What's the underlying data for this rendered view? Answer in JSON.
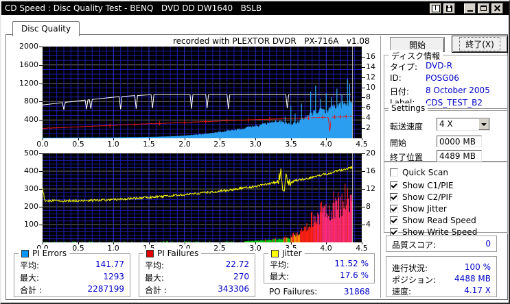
{
  "window": {
    "title": "CD Speed : Disc Quality Test - BENQ   DVD DD DW1640   BSLB"
  },
  "titlebar_icons": [
    "book-icon",
    "floppy-icon",
    "minimize-icon",
    "maximize-icon",
    "close-icon"
  ],
  "tab": {
    "label": "Disc Quality"
  },
  "recorded_with": "recorded with PLEXTOR DVDR   PX-716A   v1.08",
  "buttons": {
    "start": "開始",
    "exit": "終了(X)"
  },
  "disc_info": {
    "title": "ディスク情報",
    "rows": [
      {
        "label": "タイプ:",
        "value": "DVD-R"
      },
      {
        "label": "ID:",
        "value": "POSG06"
      },
      {
        "label": "日付:",
        "value": "8 October 2005"
      },
      {
        "label": "Label:",
        "value": "CDS_TEST_B2"
      }
    ]
  },
  "settings": {
    "title": "Settings",
    "speed_label": "転送速度",
    "speed_value": "4 X",
    "start_label": "開始",
    "start_value": "0000 MB",
    "end_label": "終了位置",
    "end_value": "4489 MB"
  },
  "checkboxes": [
    {
      "label": "Quick Scan",
      "checked": false
    },
    {
      "label": "Show C1/PIE",
      "checked": true
    },
    {
      "label": "Show C2/PIF",
      "checked": true
    },
    {
      "label": "Show Jitter",
      "checked": true
    },
    {
      "label": "Show Read Speed",
      "checked": true
    },
    {
      "label": "Show Write Speed",
      "checked": true
    }
  ],
  "quality": {
    "label": "品質スコア:",
    "value": "0"
  },
  "progress": {
    "rows": [
      {
        "label": "進行状況:",
        "value": "100 %"
      },
      {
        "label": "ポジション:",
        "value": "4488 MB"
      },
      {
        "label": "速度:",
        "value": "4.17 X"
      }
    ]
  },
  "stats": {
    "pi_errors": {
      "title": "PI Errors",
      "color": "#0095FF",
      "rows": [
        {
          "label": "平均:",
          "value": "141.77"
        },
        {
          "label": "最大:",
          "value": "1293"
        },
        {
          "label": "合計 :",
          "value": "2287199"
        }
      ]
    },
    "pi_failures": {
      "title": "PI Failures",
      "color": "#E00000",
      "rows": [
        {
          "label": "平均:",
          "value": "22.72"
        },
        {
          "label": "最大:",
          "value": "270"
        },
        {
          "label": "合計 :",
          "value": "343306"
        }
      ]
    },
    "jitter": {
      "title": "Jitter",
      "color": "#FFFF00",
      "rows": [
        {
          "label": "平均:",
          "value": "11.52 %"
        },
        {
          "label": "最大:",
          "value": "17.6 %"
        }
      ]
    },
    "po_failures": {
      "label": "PO Failures:",
      "value": "31868"
    }
  },
  "chart_data": [
    {
      "name": "PI Errors / Speed",
      "type": "line",
      "x_range": [
        0,
        4.5
      ],
      "x_tick_labels": [
        "0.0",
        "0.5",
        "1.0",
        "1.5",
        "2.0",
        "2.5",
        "3.0",
        "3.5",
        "4.0",
        "4.5"
      ],
      "left_axis": {
        "range": [
          0,
          2000
        ],
        "ticks": [
          [
            400,
            "400"
          ],
          [
            800,
            "800"
          ],
          [
            1200,
            "1200"
          ],
          [
            1600,
            "1600"
          ],
          [
            2000,
            "2000"
          ]
        ]
      },
      "right_axis": {
        "range": [
          0,
          18
        ],
        "ticks": [
          [
            2,
            "2"
          ],
          [
            4,
            "4"
          ],
          [
            6,
            "6"
          ],
          [
            8,
            "8"
          ],
          [
            10,
            "10"
          ],
          [
            12,
            "12"
          ],
          [
            14,
            "14"
          ],
          [
            16,
            "16"
          ]
        ]
      },
      "grid": {
        "h_minor": 100,
        "h_major": 400,
        "v_minor": 0.1,
        "v_major": 0.5
      },
      "end_line_x": 4.37,
      "series": [
        {
          "name": "PI Errors",
          "kind": "area",
          "axis": "left",
          "color": "#2B9EF0",
          "noise_rel": 0.14,
          "points": [
            [
              0,
              6
            ],
            [
              0.5,
              9
            ],
            [
              1,
              13
            ],
            [
              1.5,
              22
            ],
            [
              1.8,
              35
            ],
            [
              2,
              50
            ],
            [
              2.2,
              75
            ],
            [
              2.4,
              105
            ],
            [
              2.6,
              145
            ],
            [
              2.8,
              195
            ],
            [
              3,
              250
            ],
            [
              3.2,
              310
            ],
            [
              3.35,
              350
            ],
            [
              3.45,
              300
            ],
            [
              3.5,
              295
            ],
            [
              3.6,
              335
            ],
            [
              3.7,
              420
            ],
            [
              3.8,
              520
            ],
            [
              3.9,
              580
            ],
            [
              4,
              560
            ],
            [
              4.1,
              640
            ],
            [
              4.2,
              700
            ],
            [
              4.3,
              730
            ],
            [
              4.37,
              715
            ]
          ]
        },
        {
          "name": "Write Speed",
          "kind": "line",
          "axis": "right",
          "color": "#FFFFFF",
          "points": [
            [
              0,
              6.55
            ],
            [
              0.28,
              7
            ],
            [
              0.3,
              5.6
            ],
            [
              0.32,
              7.05
            ],
            [
              0.6,
              7.5
            ],
            [
              0.62,
              5.7
            ],
            [
              0.64,
              7.55
            ],
            [
              0.66,
              7.57
            ],
            [
              0.68,
              5.8
            ],
            [
              0.7,
              7.62
            ],
            [
              1.08,
              8.18
            ],
            [
              1.1,
              5.7
            ],
            [
              1.12,
              8.2
            ],
            [
              1.3,
              8.38
            ],
            [
              1.32,
              5.8
            ],
            [
              1.34,
              8.4
            ],
            [
              1.53,
              8.55
            ],
            [
              1.55,
              5.9
            ],
            [
              1.57,
              8.58
            ],
            [
              1.6,
              8.6
            ],
            [
              2.08,
              8.6
            ],
            [
              2.1,
              5.8
            ],
            [
              2.12,
              8.6
            ],
            [
              2.3,
              8.6
            ],
            [
              2.32,
              5.9
            ],
            [
              2.34,
              8.6
            ],
            [
              2.6,
              8.6
            ],
            [
              2.62,
              5.75
            ],
            [
              2.64,
              8.6
            ],
            [
              3.43,
              8.6
            ],
            [
              3.45,
              5.9
            ],
            [
              3.47,
              8.6
            ],
            [
              4.35,
              8.6
            ]
          ]
        },
        {
          "name": "Read Speed",
          "kind": "line",
          "axis": "right",
          "color": "#E01818",
          "noise": 0.05,
          "markers": [
            0.95,
            1.3,
            1.65,
            2,
            2.3,
            2.6,
            2.9,
            3.2,
            3.5,
            3.75,
            3.95,
            4.12,
            4.2,
            4.28
          ],
          "points": [
            [
              0,
              1.95
            ],
            [
              0.5,
              2.25
            ],
            [
              1,
              2.55
            ],
            [
              1.5,
              2.85
            ],
            [
              2,
              3.1
            ],
            [
              2.5,
              3.4
            ],
            [
              3,
              3.65
            ],
            [
              3.5,
              3.9
            ],
            [
              4,
              4.12
            ],
            [
              4.03,
              4.12
            ],
            [
              4.05,
              1.05
            ],
            [
              4.07,
              4.15
            ],
            [
              4.2,
              4.2
            ],
            [
              4.37,
              4.28
            ]
          ]
        },
        {
          "name": "PI Errors spikes",
          "kind": "vlines",
          "axis": "left",
          "color": "#2B9EF0",
          "spikes": [
            [
              3.42,
              470
            ],
            [
              3.5,
              700
            ],
            [
              3.56,
              540
            ],
            [
              3.65,
              760
            ],
            [
              3.78,
              1020
            ],
            [
              3.85,
              1150
            ],
            [
              3.92,
              860
            ],
            [
              4,
              980
            ],
            [
              4.07,
              900
            ],
            [
              4.15,
              1080
            ],
            [
              4.22,
              960
            ],
            [
              4.3,
              1293
            ],
            [
              4.33,
              1180
            ]
          ]
        }
      ]
    },
    {
      "name": "PI Failures / Jitter",
      "type": "line",
      "x_range": [
        0,
        4.5
      ],
      "x_tick_labels": [
        "0.0",
        "0.5",
        "1.0",
        "1.5",
        "2.0",
        "2.5",
        "3.0",
        "3.5",
        "4.0",
        "4.5"
      ],
      "left_axis": {
        "range": [
          0,
          500
        ],
        "ticks": [
          [
            100,
            "100"
          ],
          [
            200,
            "200"
          ],
          [
            300,
            "300"
          ],
          [
            400,
            "400"
          ],
          [
            500,
            "500"
          ]
        ]
      },
      "right_axis": {
        "range": [
          0,
          20
        ],
        "ticks": [
          [
            4,
            "4"
          ],
          [
            8,
            "8"
          ],
          [
            12,
            "12"
          ],
          [
            16,
            "16"
          ],
          [
            20,
            "20"
          ]
        ]
      },
      "grid": {
        "h_minor": 20,
        "h_major": 100,
        "v_minor": 0.1,
        "v_major": 0.5
      },
      "end_line_x": 4.37,
      "series": [
        {
          "name": "PI Failures",
          "kind": "bars",
          "axis": "left",
          "bar_step": 0.009,
          "sparse_until": 2.85,
          "color_ramp": [
            [
              25,
              "#00C814"
            ],
            [
              55,
              "#FF9800"
            ],
            [
              120,
              "#FF2010"
            ],
            [
              999,
              "#FF2D78"
            ]
          ],
          "envelope": [
            [
              0,
              4
            ],
            [
              1,
              5
            ],
            [
              2,
              6
            ],
            [
              2.85,
              7
            ],
            [
              3,
              11
            ],
            [
              3.2,
              17
            ],
            [
              3.35,
              24
            ],
            [
              3.5,
              34
            ],
            [
              3.6,
              58
            ],
            [
              3.7,
              92
            ],
            [
              3.8,
              140
            ],
            [
              3.9,
              175
            ],
            [
              4,
              210
            ],
            [
              4.1,
              235
            ],
            [
              4.2,
              252
            ],
            [
              4.3,
              264
            ],
            [
              4.37,
              268
            ]
          ]
        },
        {
          "name": "Jitter",
          "kind": "line",
          "axis": "right",
          "color": "#FFFF00",
          "noise": 0.26,
          "noise_regions": [
            {
              "x0": 3.32,
              "x1": 3.5,
              "amp": 1.3
            }
          ],
          "points": [
            [
              0,
              12.3
            ],
            [
              0.03,
              9.4
            ],
            [
              0.3,
              9.3
            ],
            [
              0.6,
              9.4
            ],
            [
              0.9,
              9.5
            ],
            [
              1.2,
              9.8
            ],
            [
              1.5,
              10.1
            ],
            [
              1.8,
              10.5
            ],
            [
              2.1,
              10.9
            ],
            [
              2.4,
              11.3
            ],
            [
              2.7,
              11.9
            ],
            [
              3,
              12.6
            ],
            [
              3.2,
              13.2
            ],
            [
              3.3,
              13.5
            ],
            [
              3.36,
              15.3
            ],
            [
              3.4,
              11.8
            ],
            [
              3.44,
              15
            ],
            [
              3.48,
              13.2
            ],
            [
              3.55,
              13.8
            ],
            [
              3.7,
              14.3
            ],
            [
              3.85,
              14.8
            ],
            [
              4,
              15.4
            ],
            [
              4.1,
              15.8
            ],
            [
              4.2,
              16.2
            ],
            [
              4.3,
              16.6
            ],
            [
              4.37,
              16.8
            ]
          ]
        }
      ]
    }
  ]
}
